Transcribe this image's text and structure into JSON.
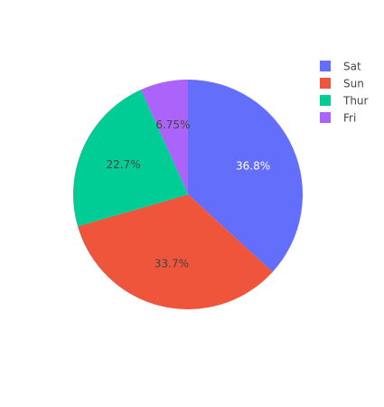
{
  "chart_data": {
    "type": "pie",
    "categories": [
      "Sat",
      "Sun",
      "Thur",
      "Fri"
    ],
    "values": [
      36.8,
      33.7,
      22.7,
      6.75
    ],
    "data_labels": [
      "36.8%",
      "33.7%",
      "22.7%",
      "6.75%"
    ],
    "colors": [
      "#636efa",
      "#EF553B",
      "#00cc96",
      "#ab63fa"
    ],
    "label_colors": [
      "#ffffff",
      "#444444",
      "#444444",
      "#444444"
    ],
    "legend": {
      "placement": "top-right",
      "entries": [
        "Sat",
        "Sun",
        "Thur",
        "Fri"
      ]
    },
    "direction": "clockwise",
    "start": "top"
  }
}
